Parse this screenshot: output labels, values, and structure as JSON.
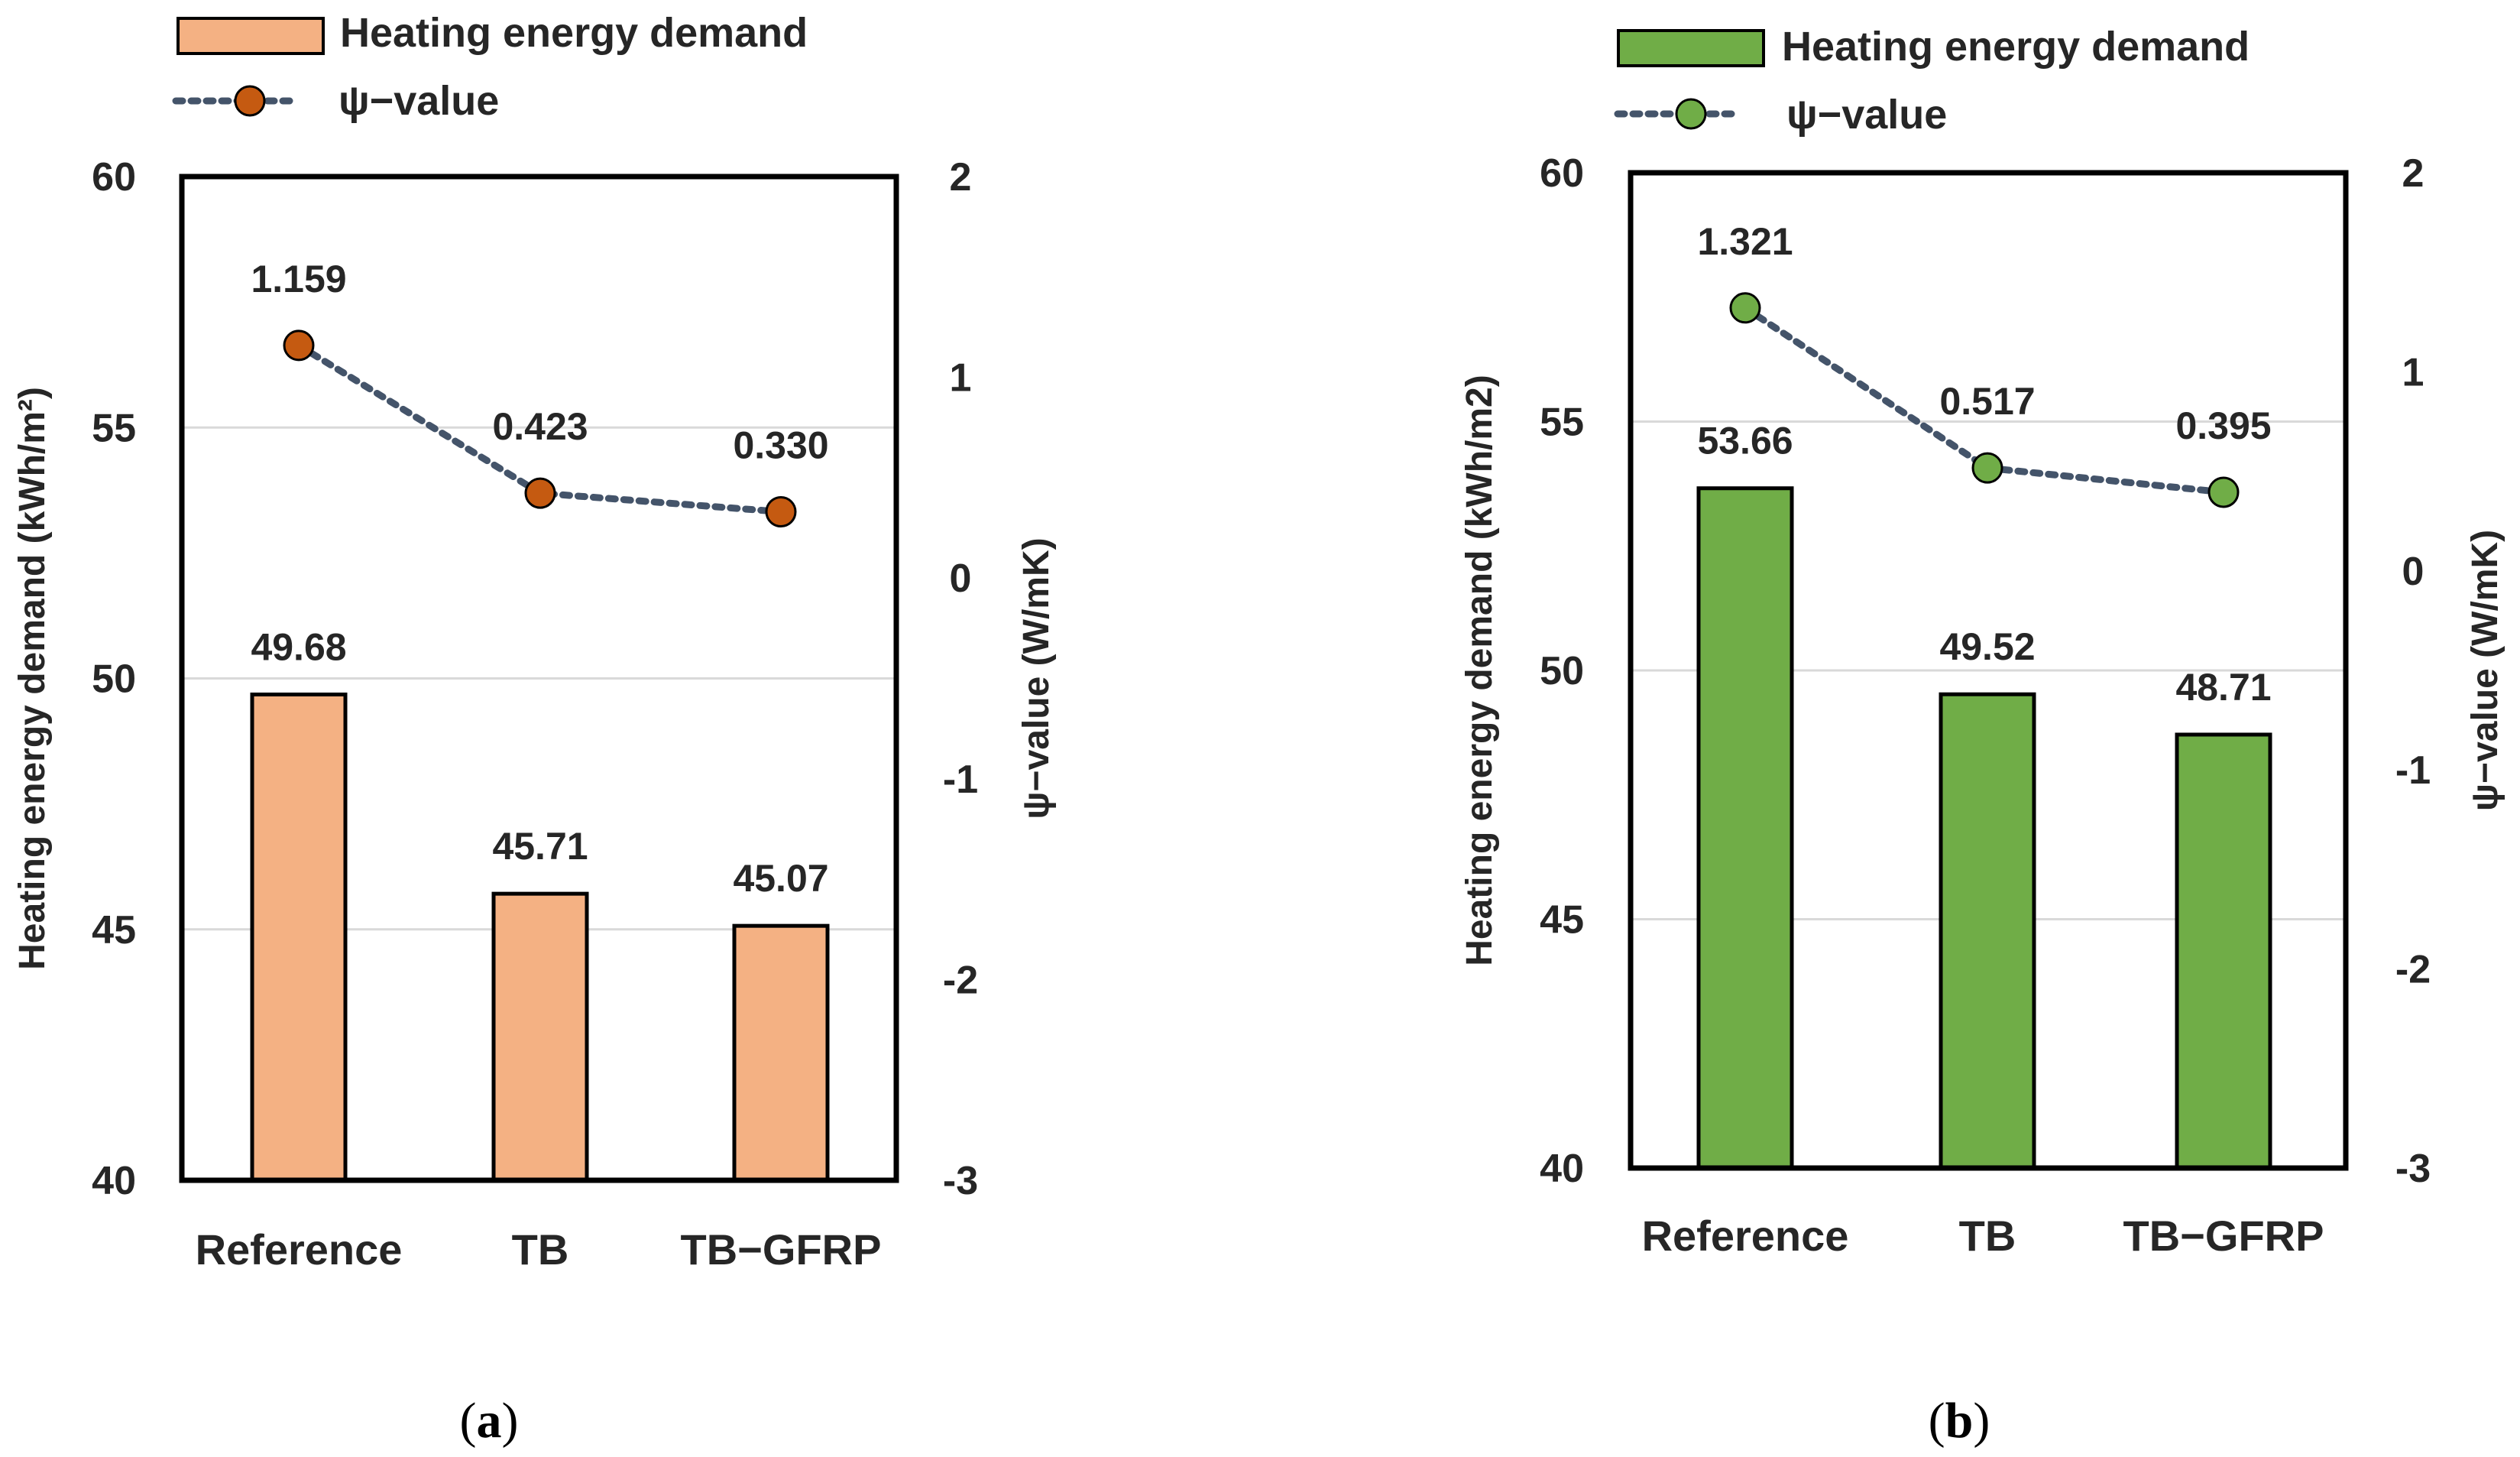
{
  "figure": {
    "panels": [
      {
        "caption_letter": "a",
        "caption": "(a)",
        "colors": {
          "bar_fill": "#F4B183",
          "bar_stroke": "#000000",
          "marker_fill": "#C55A11",
          "marker_stroke": "#000000",
          "line": "#44546A",
          "grid": "#D9D9D9",
          "frame": "#000000"
        },
        "chart_data": {
          "type": "bar",
          "categories": [
            "Reference",
            "TB",
            "TB−GFRP"
          ],
          "series": [
            {
              "name": "Heating energy demand",
              "kind": "bar",
              "axis": "left",
              "values": [
                49.68,
                45.71,
                45.07
              ],
              "labels": [
                "49.68",
                "45.71",
                "45.07"
              ]
            },
            {
              "name": "ψ−value",
              "kind": "line",
              "axis": "right",
              "values": [
                1.159,
                0.423,
                0.33
              ],
              "labels": [
                "1.159",
                "0.423",
                "0.330"
              ]
            }
          ],
          "ylabel": "Heating energy demand (kWh/m²)",
          "y2label": "ψ−value (W/mK)",
          "ylim": [
            40,
            60
          ],
          "y2lim": [
            -3,
            2
          ],
          "yticks": [
            40,
            45,
            50,
            55,
            60
          ],
          "y2ticks": [
            -3,
            -2,
            -1,
            0,
            1,
            2
          ],
          "ytick_labels": [
            "40",
            "45",
            "50",
            "55",
            "60"
          ],
          "y2tick_labels": [
            "-3",
            "-2",
            "-1",
            "0",
            "1",
            "2"
          ],
          "grid": true,
          "legend": {
            "position": "top-left, above plot",
            "entries": [
              "Heating energy demand",
              "ψ−value"
            ]
          }
        }
      },
      {
        "caption_letter": "b",
        "caption": "(b)",
        "colors": {
          "bar_fill": "#70AD47",
          "bar_stroke": "#000000",
          "marker_fill": "#70AD47",
          "marker_stroke": "#000000",
          "line": "#44546A",
          "grid": "#D9D9D9",
          "frame": "#000000"
        },
        "chart_data": {
          "type": "bar",
          "categories": [
            "Reference",
            "TB",
            "TB−GFRP"
          ],
          "series": [
            {
              "name": "Heating energy demand",
              "kind": "bar",
              "axis": "left",
              "values": [
                53.66,
                49.52,
                48.71
              ],
              "labels": [
                "53.66",
                "49.52",
                "48.71"
              ]
            },
            {
              "name": "ψ−value",
              "kind": "line",
              "axis": "right",
              "values": [
                1.321,
                0.517,
                0.395
              ],
              "labels": [
                "1.321",
                "0.517",
                "0.395"
              ]
            }
          ],
          "ylabel": "Heating energy demand (kWh/m2)",
          "y2label": "ψ−value (W/mK)",
          "ylim": [
            40,
            60
          ],
          "y2lim": [
            -3,
            2
          ],
          "yticks": [
            40,
            45,
            50,
            55,
            60
          ],
          "y2ticks": [
            -3,
            -2,
            -1,
            0,
            1,
            2
          ],
          "ytick_labels": [
            "40",
            "45",
            "50",
            "55",
            "60"
          ],
          "y2tick_labels": [
            "-3",
            "-2",
            "-1",
            "0",
            "1",
            "2"
          ],
          "grid": true,
          "legend": {
            "position": "top-left, above plot",
            "entries": [
              "Heating energy demand",
              "ψ−value"
            ]
          }
        }
      }
    ]
  }
}
